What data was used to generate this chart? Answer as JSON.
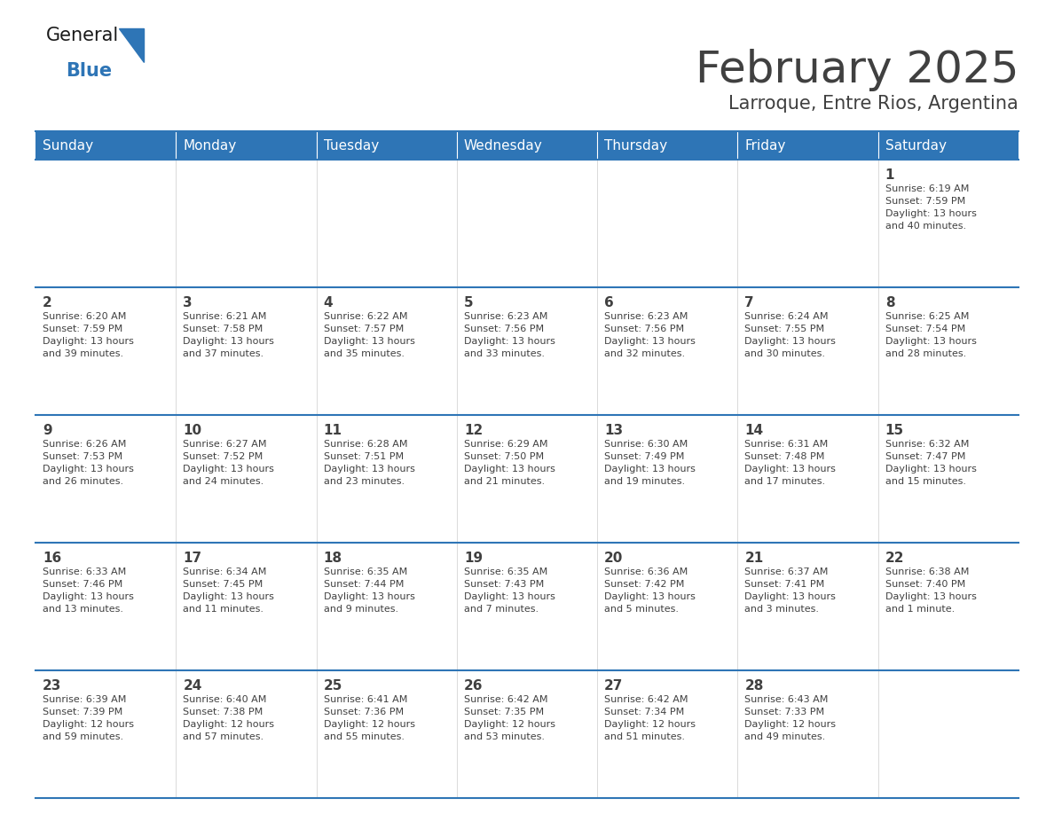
{
  "title": "February 2025",
  "subtitle": "Larroque, Entre Rios, Argentina",
  "header_bg": "#2E75B6",
  "header_text": "#FFFFFF",
  "cell_bg": "#FFFFFF",
  "grid_line_color": "#2E75B6",
  "text_color": "#404040",
  "day_num_color": "#2E75B6",
  "day_headers": [
    "Sunday",
    "Monday",
    "Tuesday",
    "Wednesday",
    "Thursday",
    "Friday",
    "Saturday"
  ],
  "calendar_data": [
    [
      {
        "day": "",
        "info": ""
      },
      {
        "day": "",
        "info": ""
      },
      {
        "day": "",
        "info": ""
      },
      {
        "day": "",
        "info": ""
      },
      {
        "day": "",
        "info": ""
      },
      {
        "day": "",
        "info": ""
      },
      {
        "day": "1",
        "info": "Sunrise: 6:19 AM\nSunset: 7:59 PM\nDaylight: 13 hours\nand 40 minutes."
      }
    ],
    [
      {
        "day": "2",
        "info": "Sunrise: 6:20 AM\nSunset: 7:59 PM\nDaylight: 13 hours\nand 39 minutes."
      },
      {
        "day": "3",
        "info": "Sunrise: 6:21 AM\nSunset: 7:58 PM\nDaylight: 13 hours\nand 37 minutes."
      },
      {
        "day": "4",
        "info": "Sunrise: 6:22 AM\nSunset: 7:57 PM\nDaylight: 13 hours\nand 35 minutes."
      },
      {
        "day": "5",
        "info": "Sunrise: 6:23 AM\nSunset: 7:56 PM\nDaylight: 13 hours\nand 33 minutes."
      },
      {
        "day": "6",
        "info": "Sunrise: 6:23 AM\nSunset: 7:56 PM\nDaylight: 13 hours\nand 32 minutes."
      },
      {
        "day": "7",
        "info": "Sunrise: 6:24 AM\nSunset: 7:55 PM\nDaylight: 13 hours\nand 30 minutes."
      },
      {
        "day": "8",
        "info": "Sunrise: 6:25 AM\nSunset: 7:54 PM\nDaylight: 13 hours\nand 28 minutes."
      }
    ],
    [
      {
        "day": "9",
        "info": "Sunrise: 6:26 AM\nSunset: 7:53 PM\nDaylight: 13 hours\nand 26 minutes."
      },
      {
        "day": "10",
        "info": "Sunrise: 6:27 AM\nSunset: 7:52 PM\nDaylight: 13 hours\nand 24 minutes."
      },
      {
        "day": "11",
        "info": "Sunrise: 6:28 AM\nSunset: 7:51 PM\nDaylight: 13 hours\nand 23 minutes."
      },
      {
        "day": "12",
        "info": "Sunrise: 6:29 AM\nSunset: 7:50 PM\nDaylight: 13 hours\nand 21 minutes."
      },
      {
        "day": "13",
        "info": "Sunrise: 6:30 AM\nSunset: 7:49 PM\nDaylight: 13 hours\nand 19 minutes."
      },
      {
        "day": "14",
        "info": "Sunrise: 6:31 AM\nSunset: 7:48 PM\nDaylight: 13 hours\nand 17 minutes."
      },
      {
        "day": "15",
        "info": "Sunrise: 6:32 AM\nSunset: 7:47 PM\nDaylight: 13 hours\nand 15 minutes."
      }
    ],
    [
      {
        "day": "16",
        "info": "Sunrise: 6:33 AM\nSunset: 7:46 PM\nDaylight: 13 hours\nand 13 minutes."
      },
      {
        "day": "17",
        "info": "Sunrise: 6:34 AM\nSunset: 7:45 PM\nDaylight: 13 hours\nand 11 minutes."
      },
      {
        "day": "18",
        "info": "Sunrise: 6:35 AM\nSunset: 7:44 PM\nDaylight: 13 hours\nand 9 minutes."
      },
      {
        "day": "19",
        "info": "Sunrise: 6:35 AM\nSunset: 7:43 PM\nDaylight: 13 hours\nand 7 minutes."
      },
      {
        "day": "20",
        "info": "Sunrise: 6:36 AM\nSunset: 7:42 PM\nDaylight: 13 hours\nand 5 minutes."
      },
      {
        "day": "21",
        "info": "Sunrise: 6:37 AM\nSunset: 7:41 PM\nDaylight: 13 hours\nand 3 minutes."
      },
      {
        "day": "22",
        "info": "Sunrise: 6:38 AM\nSunset: 7:40 PM\nDaylight: 13 hours\nand 1 minute."
      }
    ],
    [
      {
        "day": "23",
        "info": "Sunrise: 6:39 AM\nSunset: 7:39 PM\nDaylight: 12 hours\nand 59 minutes."
      },
      {
        "day": "24",
        "info": "Sunrise: 6:40 AM\nSunset: 7:38 PM\nDaylight: 12 hours\nand 57 minutes."
      },
      {
        "day": "25",
        "info": "Sunrise: 6:41 AM\nSunset: 7:36 PM\nDaylight: 12 hours\nand 55 minutes."
      },
      {
        "day": "26",
        "info": "Sunrise: 6:42 AM\nSunset: 7:35 PM\nDaylight: 12 hours\nand 53 minutes."
      },
      {
        "day": "27",
        "info": "Sunrise: 6:42 AM\nSunset: 7:34 PM\nDaylight: 12 hours\nand 51 minutes."
      },
      {
        "day": "28",
        "info": "Sunrise: 6:43 AM\nSunset: 7:33 PM\nDaylight: 12 hours\nand 49 minutes."
      },
      {
        "day": "",
        "info": ""
      }
    ]
  ],
  "logo_text_general": "General",
  "logo_text_blue": "Blue",
  "logo_color_general": "#1a1a1a",
  "logo_color_blue": "#2E75B6",
  "logo_triangle_color": "#2E75B6",
  "fig_width": 11.88,
  "fig_height": 9.18,
  "dpi": 100
}
